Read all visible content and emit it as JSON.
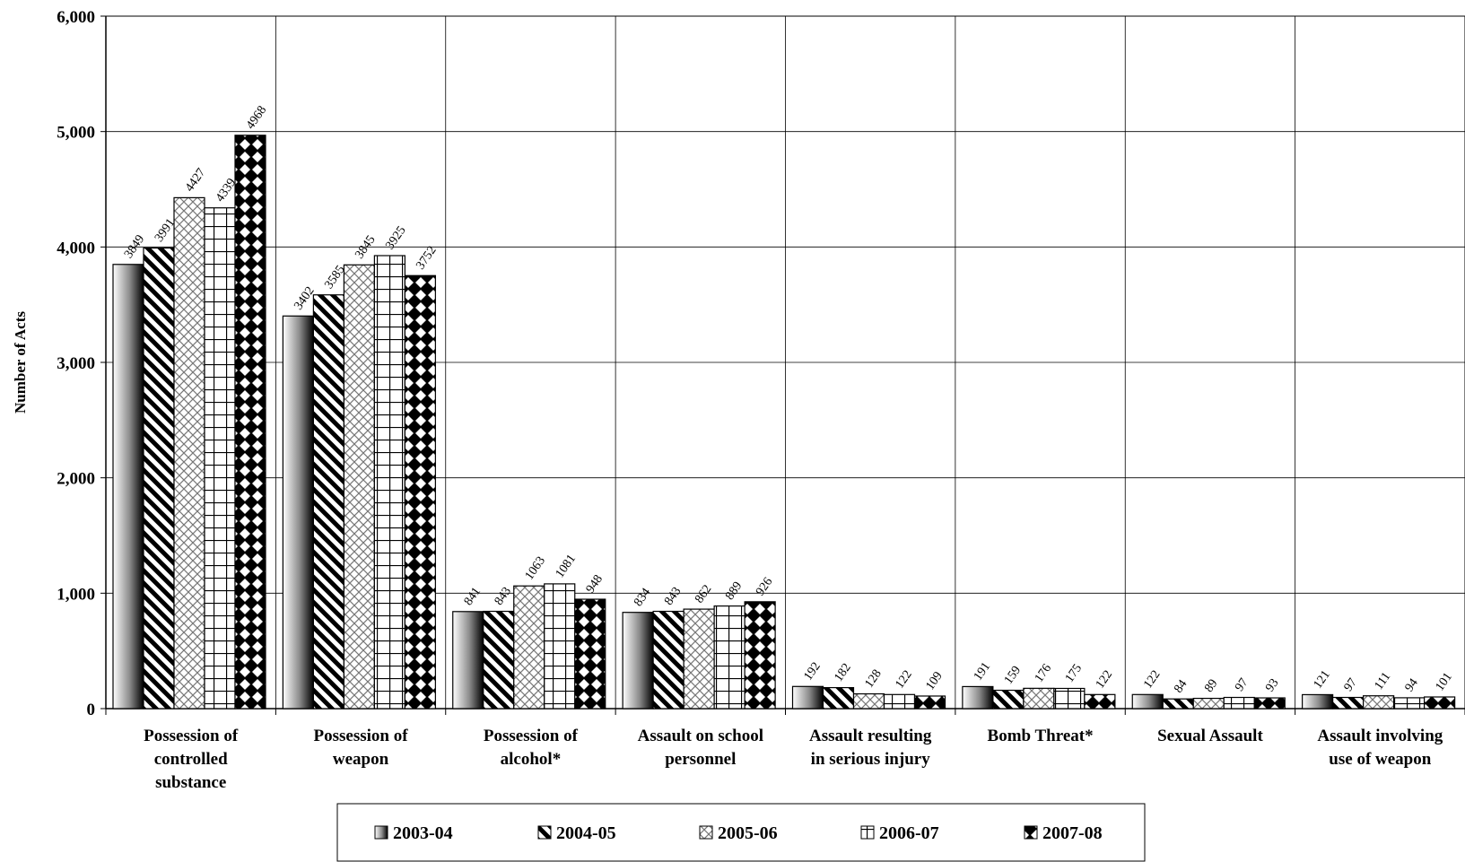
{
  "chart_data": {
    "type": "bar",
    "title": "",
    "xlabel": "",
    "ylabel": "Number of Acts",
    "ylim": [
      0,
      6000
    ],
    "yticks": [
      "0",
      "1,000",
      "2,000",
      "3,000",
      "4,000",
      "5,000",
      "6,000"
    ],
    "ytick_values": [
      0,
      1000,
      2000,
      3000,
      4000,
      5000,
      6000
    ],
    "grid": true,
    "legend_position": "bottom",
    "categories": [
      [
        "Possession of",
        "controlled",
        "substance"
      ],
      [
        "Possession of",
        "weapon"
      ],
      [
        "Possession of",
        "alcohol*"
      ],
      [
        "Assault on school",
        "personnel"
      ],
      [
        "Assault resulting",
        "in serious injury"
      ],
      [
        "Bomb Threat*"
      ],
      [
        "Sexual Assault"
      ],
      [
        "Assault involving",
        "use of weapon"
      ]
    ],
    "series": [
      {
        "name": "2003-04",
        "pattern": "gradient",
        "values": [
          3849,
          3402,
          841,
          834,
          192,
          191,
          122,
          121
        ],
        "labels": [
          "3849",
          "3402",
          "841",
          "834",
          "192",
          "191",
          "122",
          "121"
        ]
      },
      {
        "name": "2004-05",
        "pattern": "diagonal",
        "values": [
          3991,
          3585,
          843,
          843,
          182,
          159,
          84,
          97
        ],
        "labels": [
          "3991",
          "3585",
          "843",
          "843",
          "182",
          "159",
          "84",
          "97"
        ]
      },
      {
        "name": "2005-06",
        "pattern": "diamond",
        "values": [
          4427,
          3845,
          1063,
          862,
          128,
          176,
          89,
          111
        ],
        "labels": [
          "4427",
          "3845",
          "1063",
          "862",
          "128",
          "176",
          "89",
          "111"
        ]
      },
      {
        "name": "2006-07",
        "pattern": "grid",
        "values": [
          4339,
          3925,
          1081,
          889,
          122,
          175,
          97,
          94
        ],
        "labels": [
          "4339",
          "3925",
          "1081",
          "889",
          "122",
          "175",
          "97",
          "94"
        ]
      },
      {
        "name": "2007-08",
        "pattern": "checker",
        "values": [
          4968,
          3752,
          948,
          926,
          109,
          122,
          93,
          101
        ],
        "labels": [
          "4968",
          "3752",
          "948",
          "926",
          "109",
          "122",
          "93",
          "101"
        ]
      }
    ]
  }
}
